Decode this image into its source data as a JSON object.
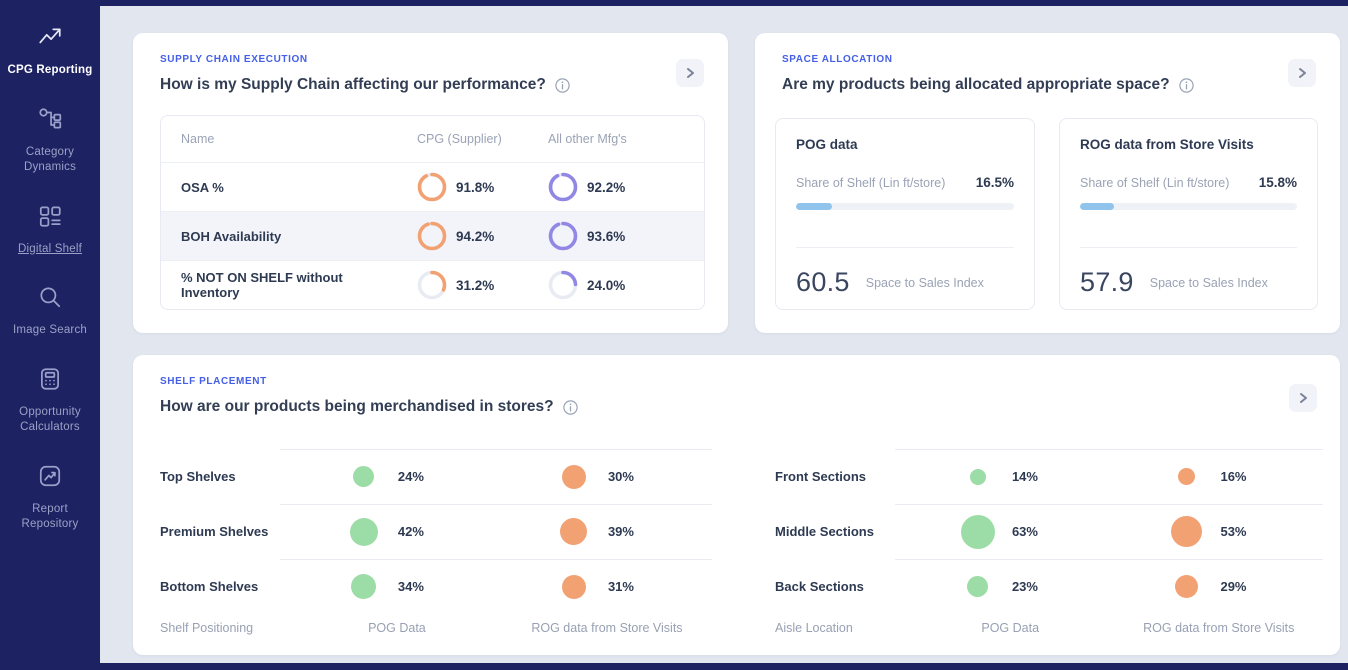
{
  "colors": {
    "navy": "#1D2262",
    "page_bg": "#E2E6EF",
    "accent_blue": "#4560E6",
    "orange": "#F2A173",
    "purple": "#9187E4",
    "green": "#9CDCA6",
    "bar_blue": "#90C4EC",
    "ring_track": "#E9EBF2"
  },
  "sidebar": {
    "items": [
      {
        "label": "CPG Reporting",
        "icon": "chart-line-icon",
        "active": true
      },
      {
        "label": "Category Dynamics",
        "icon": "hierarchy-icon",
        "active": false
      },
      {
        "label": "Digital Shelf",
        "icon": "grid-icon",
        "active": false
      },
      {
        "label": "Image Search",
        "icon": "search-icon",
        "active": false
      },
      {
        "label": "Opportunity Calculators",
        "icon": "calculator-icon",
        "active": false
      },
      {
        "label": "Report Repository",
        "icon": "report-icon",
        "active": false
      }
    ]
  },
  "supply_chain": {
    "section_label": "SUPPLY CHAIN EXECUTION",
    "title": "How is my Supply Chain affecting our performance?",
    "table": {
      "headers": [
        "Name",
        "CPG (Supplier)",
        "All other Mfg's"
      ],
      "rows": [
        {
          "name": "OSA %",
          "cpg_pct": 91.8,
          "cpg_label": "91.8%",
          "other_pct": 92.2,
          "other_label": "92.2%",
          "highlighted": false
        },
        {
          "name": "BOH Availability",
          "cpg_pct": 94.2,
          "cpg_label": "94.2%",
          "other_pct": 93.6,
          "other_label": "93.6%",
          "highlighted": true
        },
        {
          "name": "% NOT ON SHELF without Inventory",
          "cpg_pct": 31.2,
          "cpg_label": "31.2%",
          "other_pct": 24.0,
          "other_label": "24.0%",
          "highlighted": false
        }
      ]
    }
  },
  "space_allocation": {
    "section_label": "SPACE ALLOCATION",
    "title": "Are my products being allocated appropriate space?",
    "panels": [
      {
        "title": "POG data",
        "share_label": "Share of Shelf (Lin ft/store)",
        "share_value": "16.5%",
        "share_pct": 16.5,
        "index_value": "60.5",
        "index_label": "Space to Sales Index"
      },
      {
        "title": "ROG data from Store Visits",
        "share_label": "Share of Shelf (Lin ft/store)",
        "share_value": "15.8%",
        "share_pct": 15.8,
        "index_value": "57.9",
        "index_label": "Space to Sales Index"
      }
    ]
  },
  "shelf_placement": {
    "section_label": "SHELF PLACEMENT",
    "title": "How are our products being merchandised in stores?",
    "grids": [
      {
        "rows": [
          {
            "label": "Top Shelves",
            "pog_pct": 24,
            "pog_label": "24%",
            "rog_pct": 30,
            "rog_label": "30%"
          },
          {
            "label": "Premium Shelves",
            "pog_pct": 42,
            "pog_label": "42%",
            "rog_pct": 39,
            "rog_label": "39%"
          },
          {
            "label": "Bottom Shelves",
            "pog_pct": 34,
            "pog_label": "34%",
            "rog_pct": 31,
            "rog_label": "31%"
          }
        ],
        "footer": [
          "Shelf Positioning",
          "POG Data",
          "ROG data from Store Visits"
        ]
      },
      {
        "rows": [
          {
            "label": "Front Sections",
            "pog_pct": 14,
            "pog_label": "14%",
            "rog_pct": 16,
            "rog_label": "16%"
          },
          {
            "label": "Middle Sections",
            "pog_pct": 63,
            "pog_label": "63%",
            "rog_pct": 53,
            "rog_label": "53%"
          },
          {
            "label": "Back Sections",
            "pog_pct": 23,
            "pog_label": "23%",
            "rog_pct": 29,
            "rog_label": "29%"
          }
        ],
        "footer": [
          "Aisle Location",
          "POG Data",
          "ROG data from Store Visits"
        ]
      }
    ]
  }
}
